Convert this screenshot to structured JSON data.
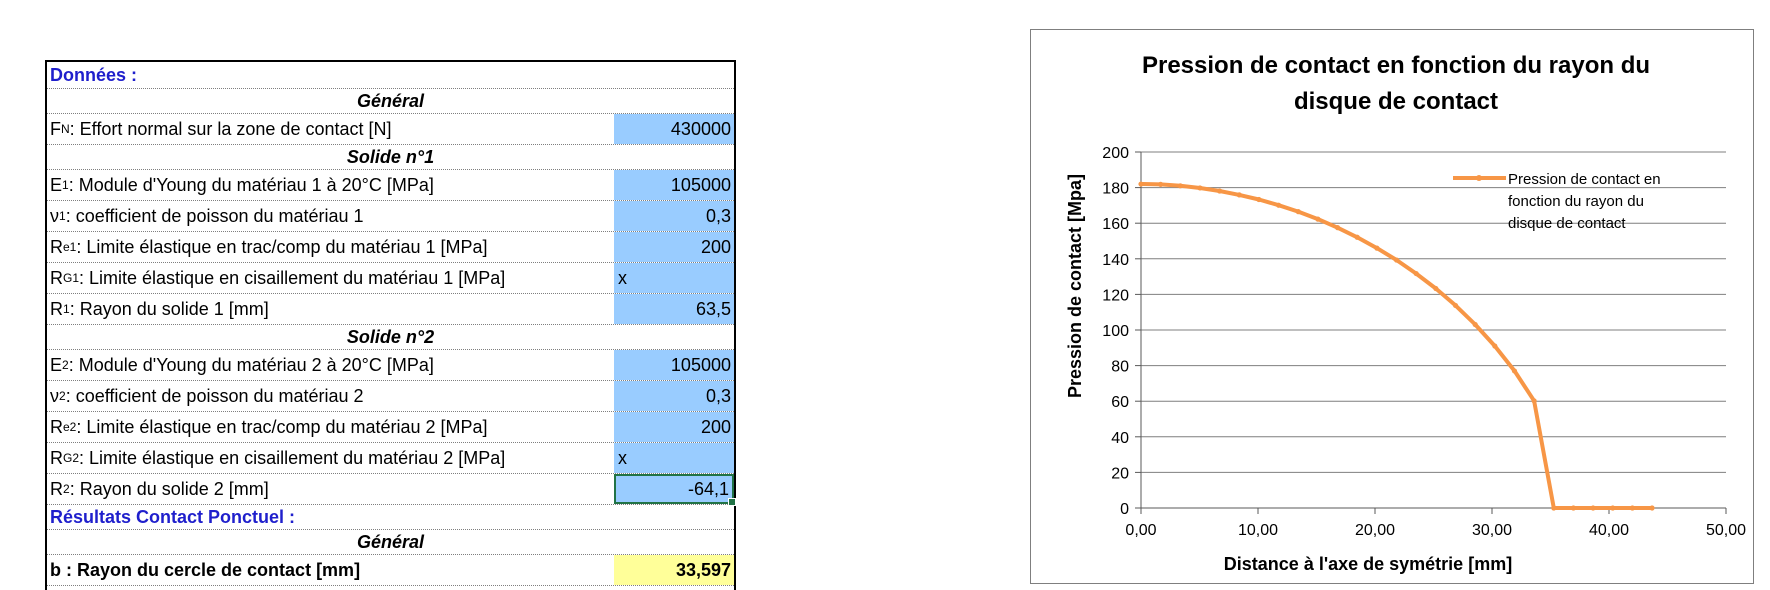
{
  "sheet": {
    "donnees_header": "Données :",
    "general1": "Général",
    "fn": {
      "main": "F",
      "sub": "N",
      "rest": " : Effort normal sur la zone de contact [N]",
      "value": "430000"
    },
    "solide1": "Solide n°1",
    "e1": {
      "main": "E",
      "sub": "1",
      "rest": " : Module d'Young du matériau 1 à 20°C [MPa]",
      "value": "105000"
    },
    "v1": {
      "main": "ν",
      "sub": "1",
      "rest": " : coefficient de poisson du matériau 1",
      "value": "0,3"
    },
    "re1": {
      "main": "R",
      "sub": "e1",
      "rest": " : Limite élastique en trac/comp du matériau 1 [MPa]",
      "value": "200"
    },
    "rg1": {
      "main": "R",
      "sub": "G1",
      "rest": " : Limite élastique en cisaillement du matériau 1 [MPa]",
      "value": "x"
    },
    "r1": {
      "main": "R",
      "sub": "1",
      "rest": " : Rayon du solide 1 [mm]",
      "value": "63,5"
    },
    "solide2": "Solide n°2",
    "e2": {
      "main": "E",
      "sub": "2",
      "rest": " : Module d'Young du matériau 2 à 20°C [MPa]",
      "value": "105000"
    },
    "v2": {
      "main": "ν",
      "sub": "2",
      "rest": " : coefficient de poisson du matériau 2",
      "value": "0,3"
    },
    "re2": {
      "main": "R",
      "sub": "e2",
      "rest": " : Limite élastique en trac/comp du matériau 2 [MPa]",
      "value": "200"
    },
    "rg2": {
      "main": "R",
      "sub": "G2",
      "rest": " : Limite élastique en cisaillement du matériau 2 [MPa]",
      "value": "x"
    },
    "r2": {
      "main": "R",
      "sub": "2",
      "rest": " : Rayon du solide 2 [mm]",
      "value": "-64,1"
    },
    "resultats_header": "Résultats Contact Ponctuel :",
    "general2": "Général",
    "b": {
      "label": "b : Rayon du cercle de contact [mm]",
      "value": "33,597"
    }
  },
  "chart_data": {
    "type": "line",
    "title_line1": "Pression de contact en fonction du rayon du",
    "title_line2": "disque de contact",
    "xlabel": "Distance à l'axe de symétrie [mm]",
    "ylabel": "Pression de contact [Mpa]",
    "xlim": [
      0,
      50
    ],
    "ylim": [
      0,
      200
    ],
    "xticks": [
      "0,00",
      "10,00",
      "20,00",
      "30,00",
      "40,00",
      "50,00"
    ],
    "yticks": [
      "0",
      "20",
      "40",
      "60",
      "80",
      "100",
      "120",
      "140",
      "160",
      "180",
      "200"
    ],
    "grid": true,
    "legend_position": "top-right",
    "legend_lines": [
      "Pression de contact en",
      "fonction du rayon du",
      "disque de contact"
    ],
    "series_color": "#f79646",
    "series": [
      {
        "x": [
          0,
          1.68,
          3.36,
          5.04,
          6.72,
          8.4,
          10.08,
          11.76,
          13.44,
          15.12,
          16.8,
          18.48,
          20.16,
          21.84,
          23.52,
          25.2,
          26.88,
          28.56,
          30.24,
          31.92,
          33.6,
          35.28,
          36.96,
          38.64,
          40.32,
          42.0,
          43.68
        ],
        "y": [
          182,
          181.8,
          181.0,
          179.8,
          178.1,
          175.9,
          173.3,
          170.1,
          166.5,
          162.3,
          157.5,
          152.1,
          146.0,
          139.3,
          131.7,
          123.3,
          113.8,
          103.1,
          91.0,
          77.0,
          60.2,
          0,
          0,
          0,
          0,
          0,
          0
        ]
      }
    ]
  }
}
